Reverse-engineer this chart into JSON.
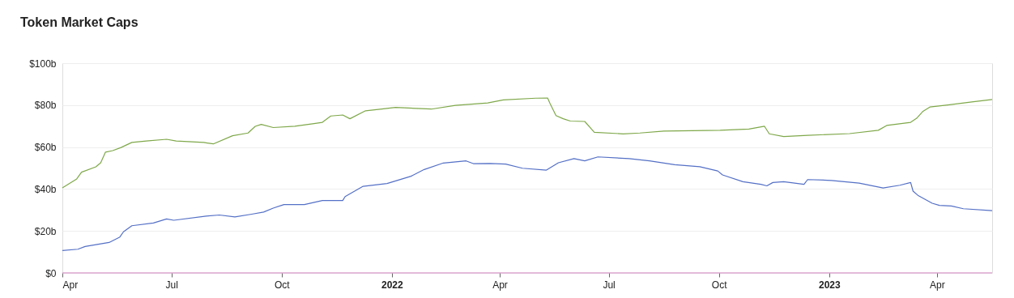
{
  "chart_data": {
    "type": "line",
    "title": "Token Market Caps",
    "xlim": [
      "2021-04-01",
      "2023-05-17"
    ],
    "xticks": [
      {
        "value": "2021-04-01",
        "label": "Apr"
      },
      {
        "value": "2021-07-01",
        "label": "Jul"
      },
      {
        "value": "2021-10-01",
        "label": "Oct"
      },
      {
        "value": "2022-01-01",
        "label": "2022"
      },
      {
        "value": "2022-04-01",
        "label": "Apr"
      },
      {
        "value": "2022-07-01",
        "label": "Jul"
      },
      {
        "value": "2022-10-01",
        "label": "Oct"
      },
      {
        "value": "2023-01-01",
        "label": "2023"
      },
      {
        "value": "2023-04-01",
        "label": "Apr"
      }
    ],
    "ylim": [
      0,
      100
    ],
    "yticks": [
      {
        "value": 0,
        "label": "$0"
      },
      {
        "value": 20,
        "label": "$20b"
      },
      {
        "value": 40,
        "label": "$40b"
      },
      {
        "value": 60,
        "label": "$60b"
      },
      {
        "value": 80,
        "label": "$80b"
      },
      {
        "value": 100,
        "label": "$100b"
      }
    ],
    "grid": "y",
    "legend": false,
    "marker": "none",
    "line_style": "solid",
    "series": [
      {
        "color": "#7fa84a",
        "x": [
          "2021-04-01",
          "2021-04-13",
          "2021-04-17",
          "2021-04-29",
          "2021-05-03",
          "2021-05-07",
          "2021-05-13",
          "2021-05-20",
          "2021-05-29",
          "2021-06-10",
          "2021-06-27",
          "2021-07-05",
          "2021-07-28",
          "2021-08-05",
          "2021-08-21",
          "2021-09-03",
          "2021-09-09",
          "2021-09-14",
          "2021-09-24",
          "2021-10-12",
          "2021-10-28",
          "2021-11-04",
          "2021-11-11",
          "2021-11-21",
          "2021-11-27",
          "2021-12-10",
          "2021-12-25",
          "2022-01-04",
          "2022-02-03",
          "2022-02-23",
          "2022-03-22",
          "2022-04-04",
          "2022-05-01",
          "2022-05-11",
          "2022-05-13",
          "2022-05-18",
          "2022-05-24",
          "2022-05-30",
          "2022-06-11",
          "2022-06-19",
          "2022-07-13",
          "2022-07-27",
          "2022-08-16",
          "2022-10-02",
          "2022-10-26",
          "2022-11-08",
          "2022-11-12",
          "2022-11-24",
          "2022-12-14",
          "2023-01-18",
          "2023-02-11",
          "2023-02-18",
          "2023-03-10",
          "2023-03-15",
          "2023-03-20",
          "2023-03-26",
          "2023-04-10",
          "2023-04-30",
          "2023-05-17"
        ],
        "values": [
          40.5,
          44.8,
          48.0,
          50.6,
          52.5,
          57.6,
          58.3,
          59.8,
          62.2,
          62.9,
          63.7,
          62.9,
          62.2,
          61.5,
          65.4,
          66.7,
          69.9,
          70.8,
          69.3,
          69.9,
          71.2,
          71.8,
          74.8,
          75.3,
          73.5,
          77.3,
          78.2,
          78.9,
          78.1,
          79.9,
          81.0,
          82.5,
          83.3,
          83.4,
          80.8,
          75.0,
          73.5,
          72.4,
          72.2,
          67.0,
          66.3,
          66.7,
          67.6,
          68.0,
          68.6,
          69.9,
          66.3,
          65.0,
          65.6,
          66.4,
          68.0,
          70.3,
          71.8,
          73.7,
          76.9,
          79.1,
          80.1,
          81.5,
          82.7
        ]
      },
      {
        "color": "#5470c6",
        "x": [
          "2021-04-01",
          "2021-04-14",
          "2021-04-20",
          "2021-05-10",
          "2021-05-19",
          "2021-05-22",
          "2021-05-29",
          "2021-06-16",
          "2021-06-27",
          "2021-07-03",
          "2021-07-30",
          "2021-08-10",
          "2021-08-23",
          "2021-09-06",
          "2021-09-16",
          "2021-09-24",
          "2021-10-03",
          "2021-10-20",
          "2021-11-04",
          "2021-11-21",
          "2021-11-23",
          "2021-12-08",
          "2021-12-28",
          "2022-01-17",
          "2022-01-28",
          "2022-02-13",
          "2022-03-04",
          "2022-03-10",
          "2022-03-24",
          "2022-04-06",
          "2022-04-20",
          "2022-05-10",
          "2022-05-20",
          "2022-06-02",
          "2022-06-11",
          "2022-06-22",
          "2022-07-18",
          "2022-08-04",
          "2022-08-25",
          "2022-09-15",
          "2022-09-30",
          "2022-10-04",
          "2022-10-21",
          "2022-11-05",
          "2022-11-10",
          "2022-11-15",
          "2022-11-24",
          "2022-12-11",
          "2022-12-14",
          "2023-01-03",
          "2023-01-26",
          "2023-02-15",
          "2023-03-01",
          "2023-03-10",
          "2023-03-12",
          "2023-03-16",
          "2023-03-28",
          "2023-04-03",
          "2023-04-13",
          "2023-04-23",
          "2023-05-17"
        ],
        "values": [
          10.7,
          11.3,
          12.6,
          14.5,
          17.1,
          19.6,
          22.5,
          23.8,
          25.7,
          25.1,
          27.1,
          27.6,
          26.7,
          28.0,
          29.0,
          30.9,
          32.6,
          32.6,
          34.5,
          34.5,
          36.4,
          41.3,
          42.6,
          46.1,
          49.3,
          52.4,
          53.4,
          52.1,
          52.2,
          51.9,
          49.9,
          49.0,
          52.5,
          54.5,
          53.4,
          55.3,
          54.5,
          53.4,
          51.6,
          50.6,
          48.6,
          46.7,
          43.5,
          42.2,
          41.5,
          43.1,
          43.5,
          42.2,
          44.5,
          44.1,
          42.8,
          40.5,
          41.8,
          43.1,
          39.0,
          37.0,
          33.2,
          32.2,
          31.9,
          30.6,
          29.7
        ]
      },
      {
        "color": "#d07fbd",
        "x": [
          "2021-04-01",
          "2023-05-17"
        ],
        "values": [
          0,
          0
        ]
      }
    ]
  }
}
